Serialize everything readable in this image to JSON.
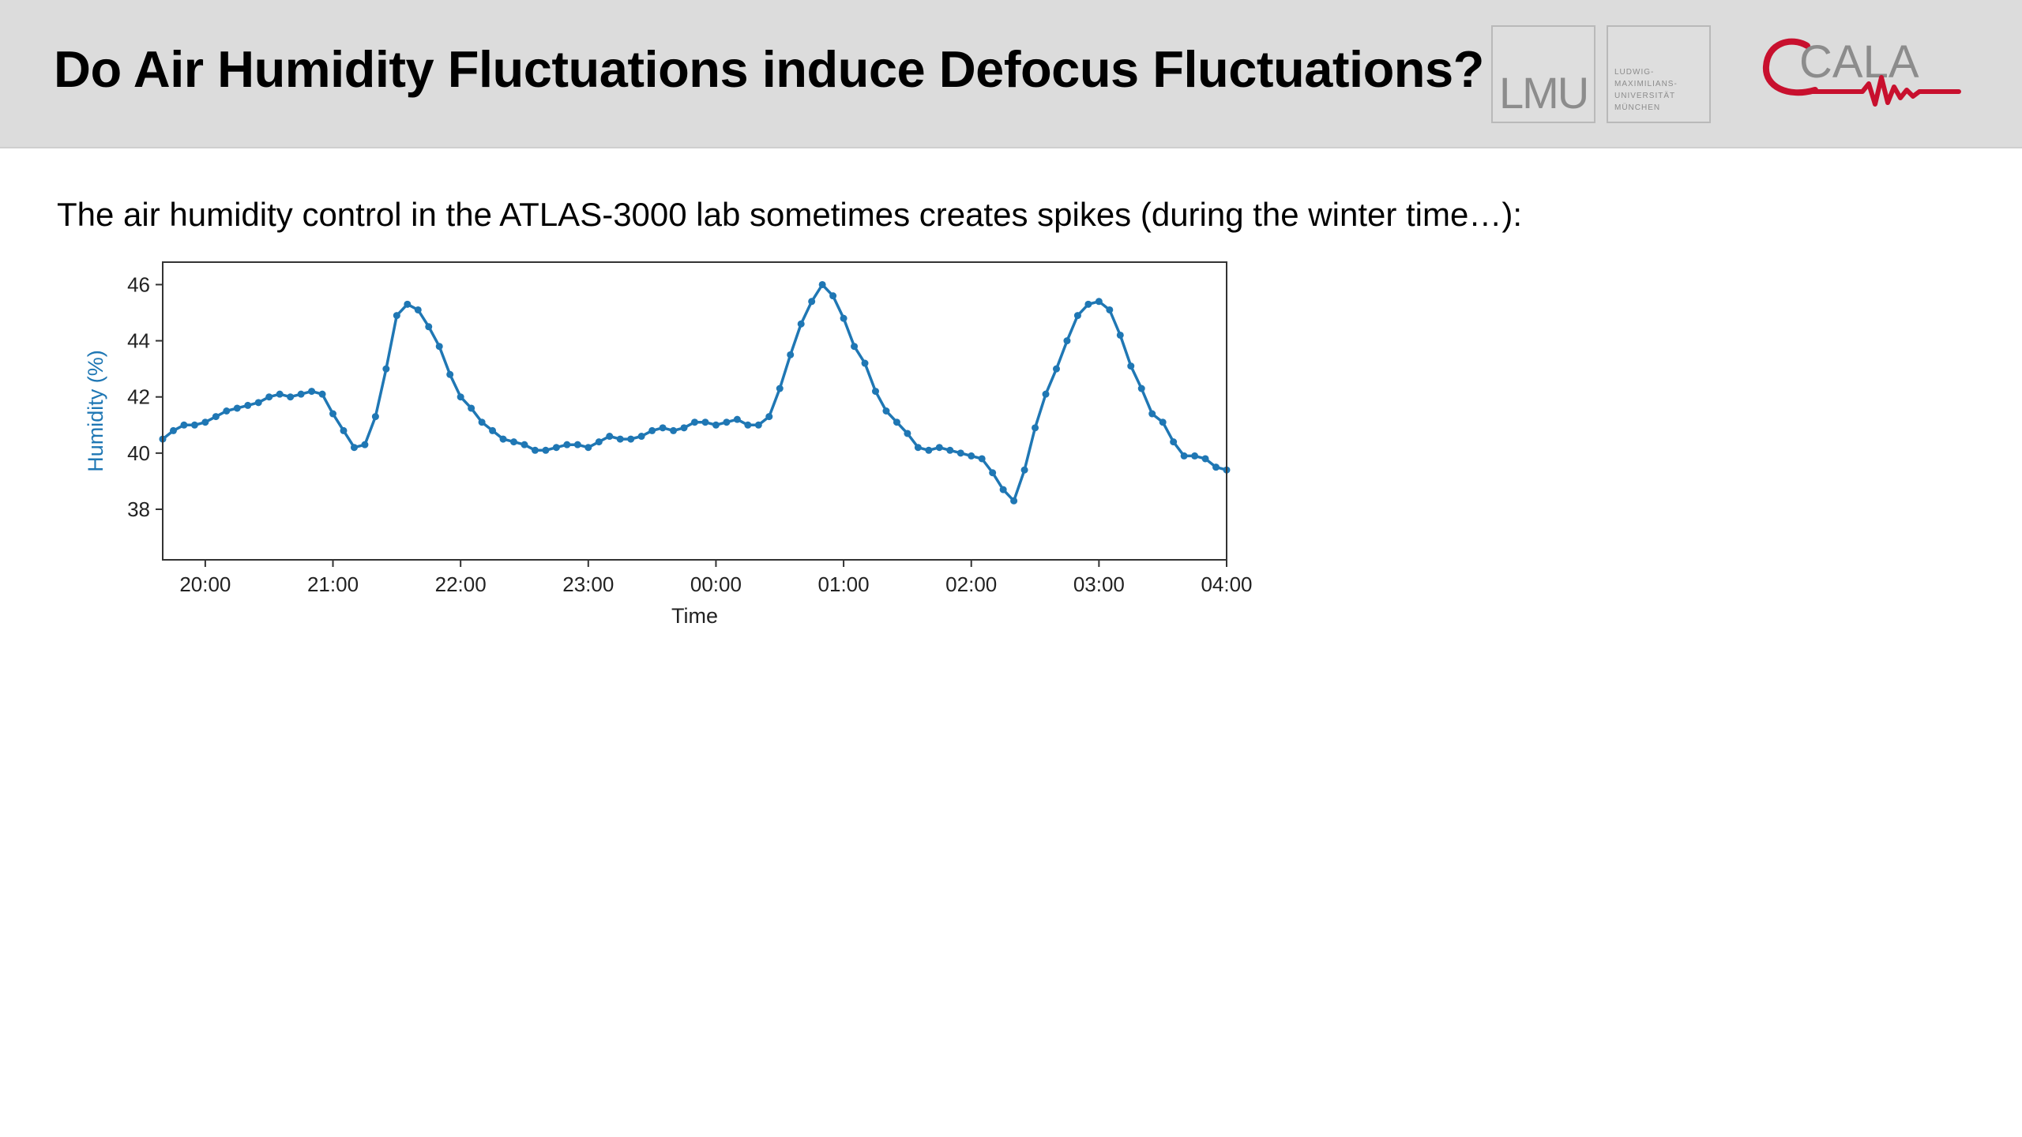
{
  "slide": {
    "title": "Do Air Humidity Fluctuations induce Defocus Fluctuations?",
    "subtitle": "The air humidity control in the ATLAS-3000 lab sometimes creates spikes (during the winter time…):",
    "logos": {
      "lmu": "LMU",
      "lmu_text": [
        "LUDWIG-",
        "MAXIMILIANS-",
        "UNIVERSITÄT",
        "MÜNCHEN"
      ],
      "cala": "CALA"
    },
    "colors": {
      "header_bg": "#dcdcdc",
      "series": "#1f77b4",
      "cala_red": "#c8102e",
      "cala_gray": "#8c8c8c"
    }
  },
  "chart_data": {
    "type": "line",
    "xlabel": "Time",
    "ylabel": "Humidity (%)",
    "xlim": [
      "19:40",
      "04:00"
    ],
    "ylim": [
      36.2,
      46.8
    ],
    "xticks": [
      "20:00",
      "21:00",
      "22:00",
      "23:00",
      "00:00",
      "01:00",
      "02:00",
      "03:00",
      "04:00"
    ],
    "yticks": [
      38,
      40,
      42,
      44,
      46
    ],
    "grid": false,
    "series": [
      {
        "color": "#1f77b4",
        "marker": "dot",
        "x": [
          "19:40",
          "19:45",
          "19:50",
          "19:55",
          "20:00",
          "20:05",
          "20:10",
          "20:15",
          "20:20",
          "20:25",
          "20:30",
          "20:35",
          "20:40",
          "20:45",
          "20:50",
          "20:55",
          "21:00",
          "21:05",
          "21:10",
          "21:15",
          "21:20",
          "21:25",
          "21:30",
          "21:35",
          "21:40",
          "21:45",
          "21:50",
          "21:55",
          "22:00",
          "22:05",
          "22:10",
          "22:15",
          "22:20",
          "22:25",
          "22:30",
          "22:35",
          "22:40",
          "22:45",
          "22:50",
          "22:55",
          "23:00",
          "23:05",
          "23:10",
          "23:15",
          "23:20",
          "23:25",
          "23:30",
          "23:35",
          "23:40",
          "23:45",
          "23:50",
          "23:55",
          "00:00",
          "00:05",
          "00:10",
          "00:15",
          "00:20",
          "00:25",
          "00:30",
          "00:35",
          "00:40",
          "00:45",
          "00:50",
          "00:55",
          "01:00",
          "01:05",
          "01:10",
          "01:15",
          "01:20",
          "01:25",
          "01:30",
          "01:35",
          "01:40",
          "01:45",
          "01:50",
          "01:55",
          "02:00",
          "02:05",
          "02:10",
          "02:15",
          "02:20",
          "02:25",
          "02:30",
          "02:35",
          "02:40",
          "02:45",
          "02:50",
          "02:55",
          "03:00",
          "03:05",
          "03:10",
          "03:15",
          "03:20",
          "03:25",
          "03:30",
          "03:35",
          "03:40",
          "03:45",
          "03:50",
          "03:55",
          "04:00"
        ],
        "y": [
          40.5,
          40.8,
          41.0,
          41.0,
          41.1,
          41.3,
          41.5,
          41.6,
          41.7,
          41.8,
          42.0,
          42.1,
          42.0,
          42.1,
          42.2,
          42.1,
          41.4,
          40.8,
          40.2,
          40.3,
          41.3,
          43.0,
          44.9,
          45.3,
          45.1,
          44.5,
          43.8,
          42.8,
          42.0,
          41.6,
          41.1,
          40.8,
          40.5,
          40.4,
          40.3,
          40.1,
          40.1,
          40.2,
          40.3,
          40.3,
          40.2,
          40.4,
          40.6,
          40.5,
          40.5,
          40.6,
          40.8,
          40.9,
          40.8,
          40.9,
          41.1,
          41.1,
          41.0,
          41.1,
          41.2,
          41.0,
          41.0,
          41.3,
          42.3,
          43.5,
          44.6,
          45.4,
          46.0,
          45.6,
          44.8,
          43.8,
          43.2,
          42.2,
          41.5,
          41.1,
          40.7,
          40.2,
          40.1,
          40.2,
          40.1,
          40.0,
          39.9,
          39.8,
          39.3,
          38.7,
          38.3,
          39.4,
          40.9,
          42.1,
          43.0,
          44.0,
          44.9,
          45.3,
          45.4,
          45.1,
          44.2,
          43.1,
          42.3,
          41.4,
          41.1,
          40.4,
          39.9,
          39.9,
          39.8,
          39.5,
          39.4
        ]
      }
    ]
  }
}
